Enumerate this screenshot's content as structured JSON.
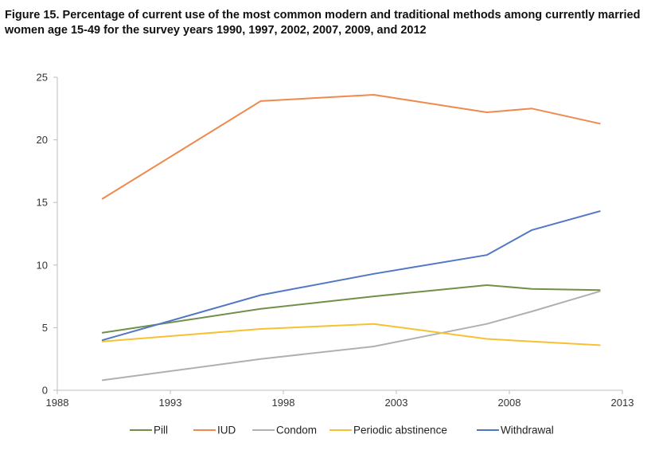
{
  "chart_data": {
    "type": "line",
    "title": "Figure 15. Percentage of current use of the most common modern and traditional methods among currently married women age 15-49 for the survey years 1990, 1997, 2002, 2007, 2009, and 2012",
    "xlabel": "",
    "ylabel": "",
    "xlim": [
      1988,
      2013
    ],
    "ylim": [
      0,
      25
    ],
    "xticks": [
      1988,
      1993,
      1998,
      2003,
      2008,
      2013
    ],
    "yticks": [
      0,
      5,
      10,
      15,
      20,
      25
    ],
    "grid": false,
    "legend_position": "bottom",
    "x": [
      1990,
      1997,
      2002,
      2007,
      2009,
      2012
    ],
    "series": [
      {
        "name": "Pill",
        "color": "#70904a",
        "values": [
          4.6,
          6.5,
          7.5,
          8.4,
          8.1,
          8.0
        ]
      },
      {
        "name": "IUD",
        "color": "#ee8a50",
        "values": [
          15.3,
          23.1,
          23.6,
          22.2,
          22.5,
          21.3
        ]
      },
      {
        "name": "Condom",
        "color": "#b0b0b0",
        "values": [
          0.8,
          2.5,
          3.5,
          5.3,
          6.3,
          7.9
        ]
      },
      {
        "name": "Periodic abstinence",
        "color": "#f6c232",
        "values": [
          3.9,
          4.9,
          5.3,
          4.1,
          3.9,
          3.6
        ]
      },
      {
        "name": "Withdrawal",
        "color": "#5177c4",
        "values": [
          4.0,
          7.6,
          9.3,
          10.8,
          12.8,
          14.3
        ]
      }
    ]
  }
}
